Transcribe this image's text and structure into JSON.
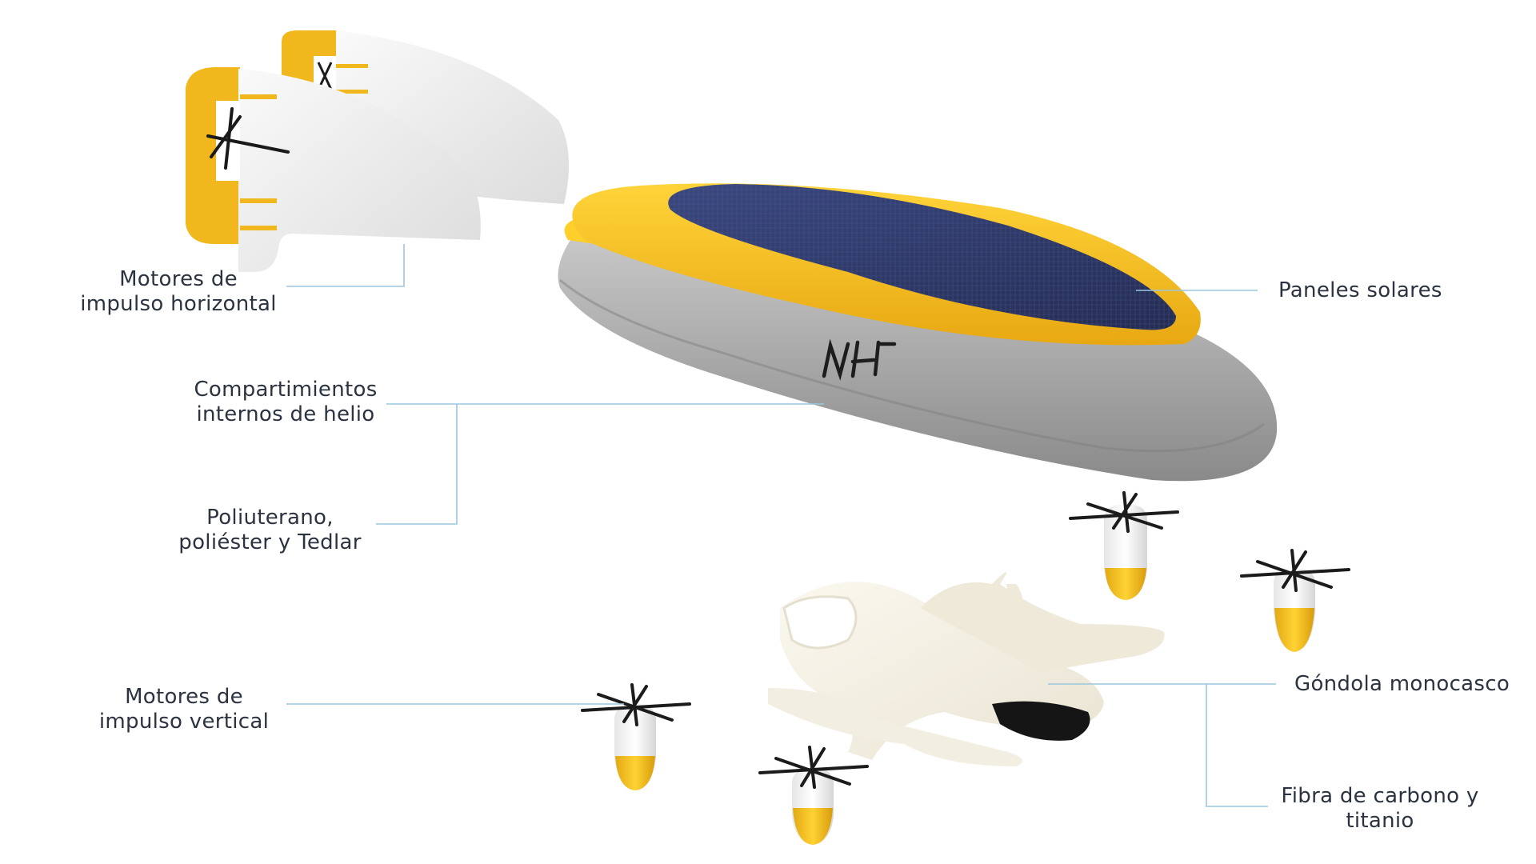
{
  "labels": {
    "horizontal_motors": [
      "Motores de",
      "impulso horizontal"
    ],
    "solar_panels": [
      "Paneles solares"
    ],
    "helium": [
      "Compartimientos",
      "internos de helio"
    ],
    "materials": [
      "Poliuterano,",
      "poliéster y Tedlar"
    ],
    "vertical_motors": [
      "Motores de",
      "impulso vertical"
    ],
    "gondola": [
      "Góndola monocasco"
    ],
    "carbon": [
      "Fibra de carbono y",
      "titanio"
    ]
  },
  "logo_text": "NH",
  "colors": {
    "yellow": "#f2b71c",
    "gray_hull": "#a3a3a3",
    "solar_blue": "#2e3a66",
    "wing_white": "#f1f1f1",
    "leader_line": "#9cc7de",
    "text": "#2b3340"
  }
}
